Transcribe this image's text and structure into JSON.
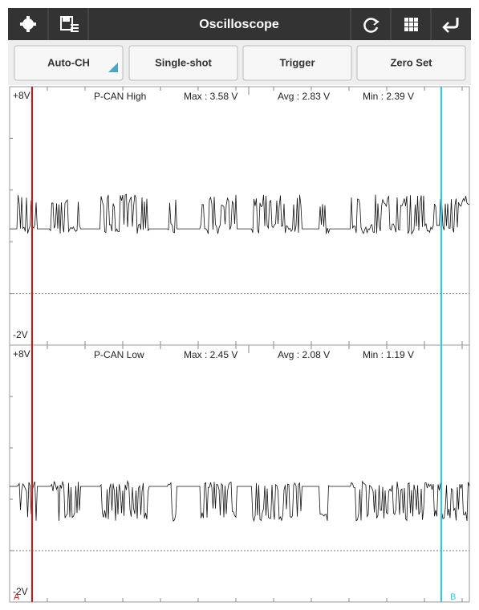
{
  "toolbar": {
    "title": "Oscilloscope"
  },
  "buttons": [
    "Auto-CH",
    "Single-shot",
    "Trigger",
    "Zero Set"
  ],
  "channels": [
    {
      "name": "P-CAN High",
      "max": "Max : 3.58 V",
      "avg": "Avg : 2.83 V",
      "min": "Min : 2.39 V",
      "top_label": "+8V",
      "bottom_label": "-2V"
    },
    {
      "name": "P-CAN Low",
      "max": "Max : 2.45 V",
      "avg": "Avg : 2.08 V",
      "min": "Min : 1.19 V",
      "top_label": "+8V",
      "bottom_label": "-2V"
    }
  ],
  "cursors": {
    "a": "A",
    "b": "B"
  }
}
